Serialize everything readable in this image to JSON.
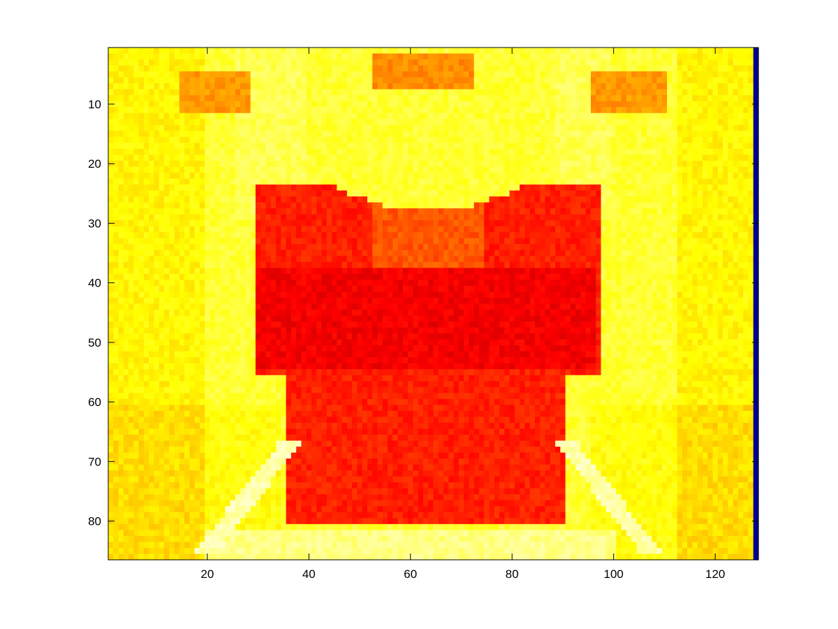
{
  "chart_data": {
    "type": "heatmap",
    "title": "",
    "xlabel": "",
    "ylabel": "",
    "xlim": [
      0.5,
      128.5
    ],
    "ylim": [
      0.5,
      86.5
    ],
    "y_reversed": true,
    "x_ticks": [
      20,
      40,
      60,
      80,
      100,
      120
    ],
    "y_ticks": [
      10,
      20,
      30,
      40,
      50,
      60,
      70,
      80
    ],
    "x_tick_labels": [
      "20",
      "40",
      "60",
      "80",
      "100",
      "120"
    ],
    "y_tick_labels": [
      "10",
      "20",
      "30",
      "40",
      "50",
      "60",
      "70",
      "80"
    ],
    "colormap": "hot",
    "grid": false,
    "image_size": {
      "cols": 128,
      "rows": 86
    },
    "regions": [
      {
        "name": "background",
        "level": 0.8
      },
      {
        "name": "central-block",
        "x": [
          30,
          97
        ],
        "y": [
          24,
          80
        ],
        "level": 0.42
      },
      {
        "name": "dark-band",
        "x": [
          29,
          96
        ],
        "y": [
          38,
          54
        ],
        "level": 0.36
      },
      {
        "name": "top-center-patch",
        "x": [
          53,
          72
        ],
        "y": [
          2,
          7
        ],
        "level": 0.58
      },
      {
        "name": "top-left-patch",
        "x": [
          15,
          28
        ],
        "y": [
          5,
          11
        ],
        "level": 0.6
      },
      {
        "name": "top-right-patch",
        "x": [
          96,
          110
        ],
        "y": [
          5,
          11
        ],
        "level": 0.6
      },
      {
        "name": "bottom-glow",
        "x": [
          20,
          100
        ],
        "y": [
          80,
          86
        ],
        "level": 0.92
      }
    ],
    "edge_column": {
      "x": 128,
      "color": "#00008f"
    }
  }
}
